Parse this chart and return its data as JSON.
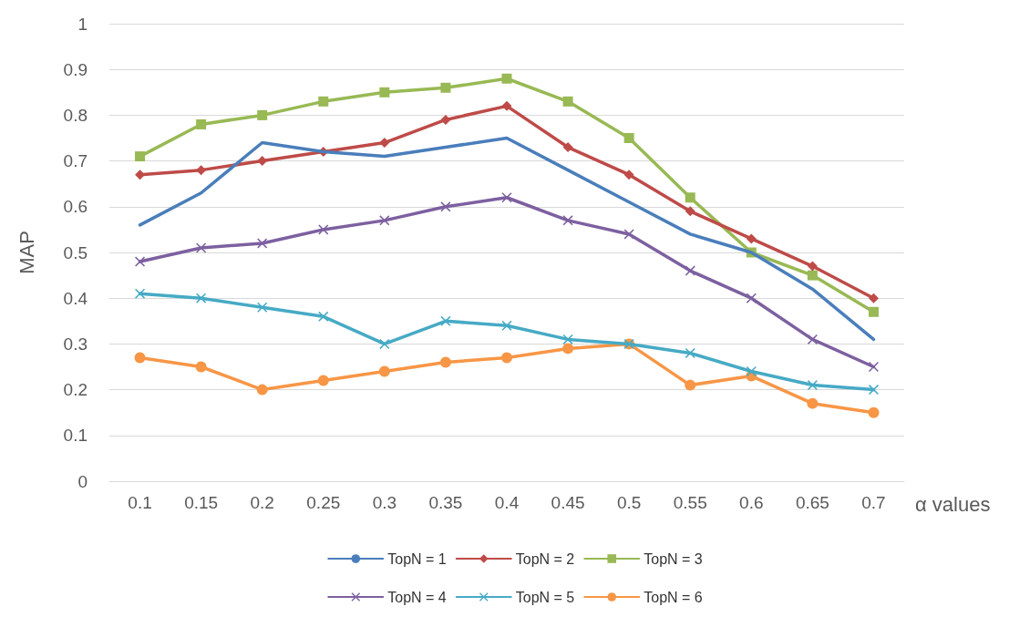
{
  "chart_data": {
    "type": "line",
    "xlabel": "α values",
    "ylabel": "MAP",
    "categories": [
      "0.1",
      "0.15",
      "0.2",
      "0.25",
      "0.3",
      "0.35",
      "0.4",
      "0.45",
      "0.5",
      "0.55",
      "0.6",
      "0.65",
      "0.7"
    ],
    "ylim": [
      0,
      1
    ],
    "yticks": [
      0,
      0.1,
      0.2,
      0.3,
      0.4,
      0.5,
      0.6,
      0.7,
      0.8,
      0.9,
      1
    ],
    "grid": "y",
    "legend": "bottom",
    "series": [
      {
        "name": "TopN = 1",
        "color": "#4a7ebb",
        "marker": "none",
        "values": [
          0.56,
          0.63,
          0.74,
          0.72,
          0.71,
          0.73,
          0.75,
          0.68,
          0.61,
          0.54,
          0.5,
          0.42,
          0.31
        ]
      },
      {
        "name": "TopN = 2",
        "color": "#be4b48",
        "marker": "diamond",
        "values": [
          0.67,
          0.68,
          0.7,
          0.72,
          0.74,
          0.79,
          0.82,
          0.73,
          0.67,
          0.59,
          0.53,
          0.47,
          0.4
        ]
      },
      {
        "name": "TopN = 3",
        "color": "#98b954",
        "marker": "square",
        "values": [
          0.71,
          0.78,
          0.8,
          0.83,
          0.85,
          0.86,
          0.88,
          0.83,
          0.75,
          0.62,
          0.5,
          0.45,
          0.37
        ]
      },
      {
        "name": "TopN = 4",
        "color": "#7d60a0",
        "marker": "cross",
        "values": [
          0.48,
          0.51,
          0.52,
          0.55,
          0.57,
          0.6,
          0.62,
          0.57,
          0.54,
          0.46,
          0.4,
          0.31,
          0.25
        ]
      },
      {
        "name": "TopN = 5",
        "color": "#46aac5",
        "marker": "cross",
        "values": [
          0.41,
          0.4,
          0.38,
          0.36,
          0.3,
          0.35,
          0.34,
          0.31,
          0.3,
          0.28,
          0.24,
          0.21,
          0.2
        ]
      },
      {
        "name": "TopN = 6",
        "color": "#f79646",
        "marker": "circle",
        "values": [
          0.27,
          0.25,
          0.2,
          0.22,
          0.24,
          0.26,
          0.27,
          0.29,
          0.3,
          0.21,
          0.23,
          0.17,
          0.15
        ]
      }
    ]
  }
}
